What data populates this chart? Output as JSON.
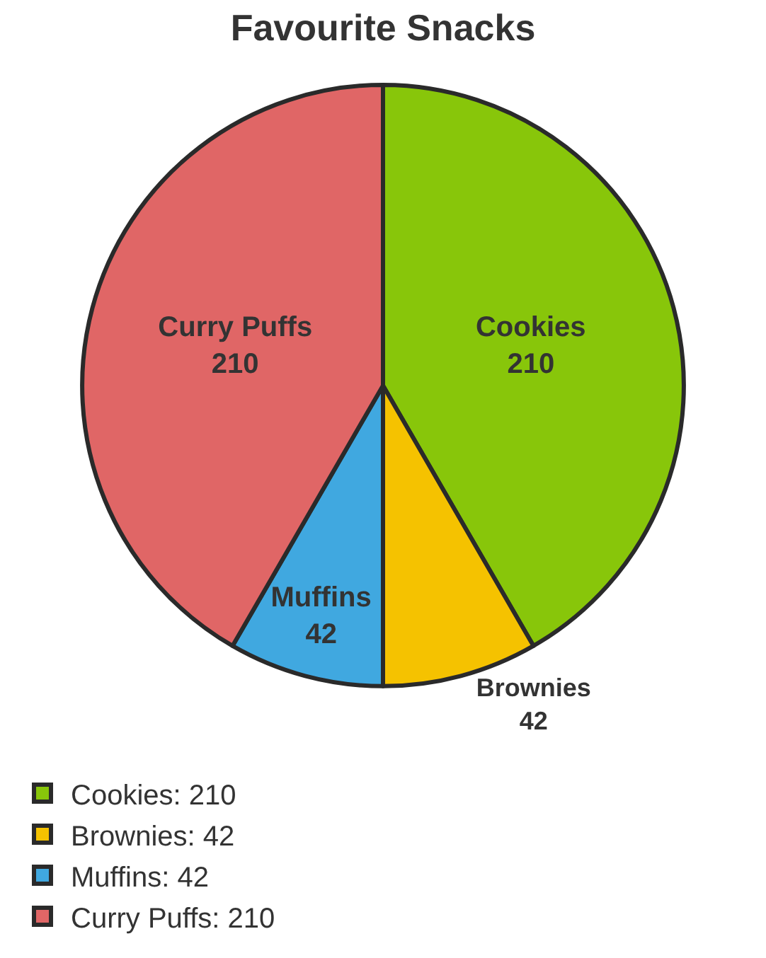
{
  "chart_data": {
    "type": "pie",
    "title": "Favourite Snacks",
    "categories": [
      "Cookies",
      "Brownies",
      "Muffins",
      "Curry Puffs"
    ],
    "values": [
      210,
      42,
      42,
      210
    ],
    "colors": [
      "#88c60a",
      "#f5c200",
      "#40a8e0",
      "#e06666"
    ],
    "data_labels": true,
    "annotations": [
      ": 210",
      ": 42",
      ": 42",
      ": 210"
    ],
    "legend": "bottom left"
  }
}
